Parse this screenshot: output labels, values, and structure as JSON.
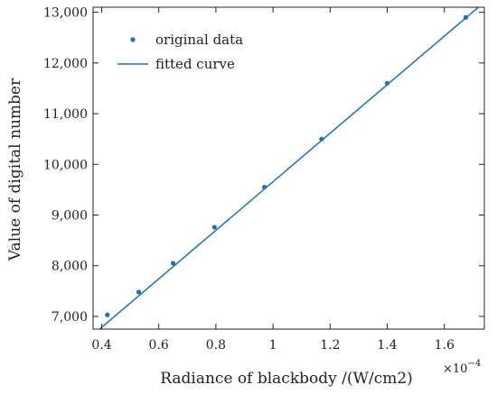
{
  "chart_data": {
    "type": "scatter",
    "title": "",
    "xlabel": "Radiance of blackbody /(W/cm2)",
    "ylabel": "Value of digital number",
    "x_multiplier": {
      "base": "×10",
      "exponent": "−4"
    },
    "xlim": [
      0.37,
      1.74
    ],
    "ylim": [
      6750,
      13100
    ],
    "xticks": [
      0.4,
      0.6,
      0.8,
      1.0,
      1.2,
      1.4,
      1.6
    ],
    "xtick_labels": [
      "0.4",
      "0.6",
      "0.8",
      "1",
      "1.2",
      "1.4",
      "1.6"
    ],
    "yticks": [
      7000,
      8000,
      9000,
      10000,
      11000,
      12000,
      13000
    ],
    "ytick_labels": [
      "7,000",
      "8,000",
      "9,000",
      "10,000",
      "11,000",
      "12,000",
      "13,000"
    ],
    "grid": false,
    "legend_position": "top-left",
    "color": "#1f6fb5",
    "series": [
      {
        "name": "original data",
        "kind": "scatter",
        "x": [
          0.42,
          0.53,
          0.65,
          0.795,
          0.97,
          1.17,
          1.4,
          1.675
        ],
        "y": [
          7030,
          7480,
          8050,
          8760,
          9550,
          10500,
          11600,
          12900
        ]
      },
      {
        "name": "fitted curve",
        "kind": "line",
        "x": [
          0.37,
          1.74
        ],
        "y": [
          6640,
          13200
        ]
      }
    ]
  }
}
